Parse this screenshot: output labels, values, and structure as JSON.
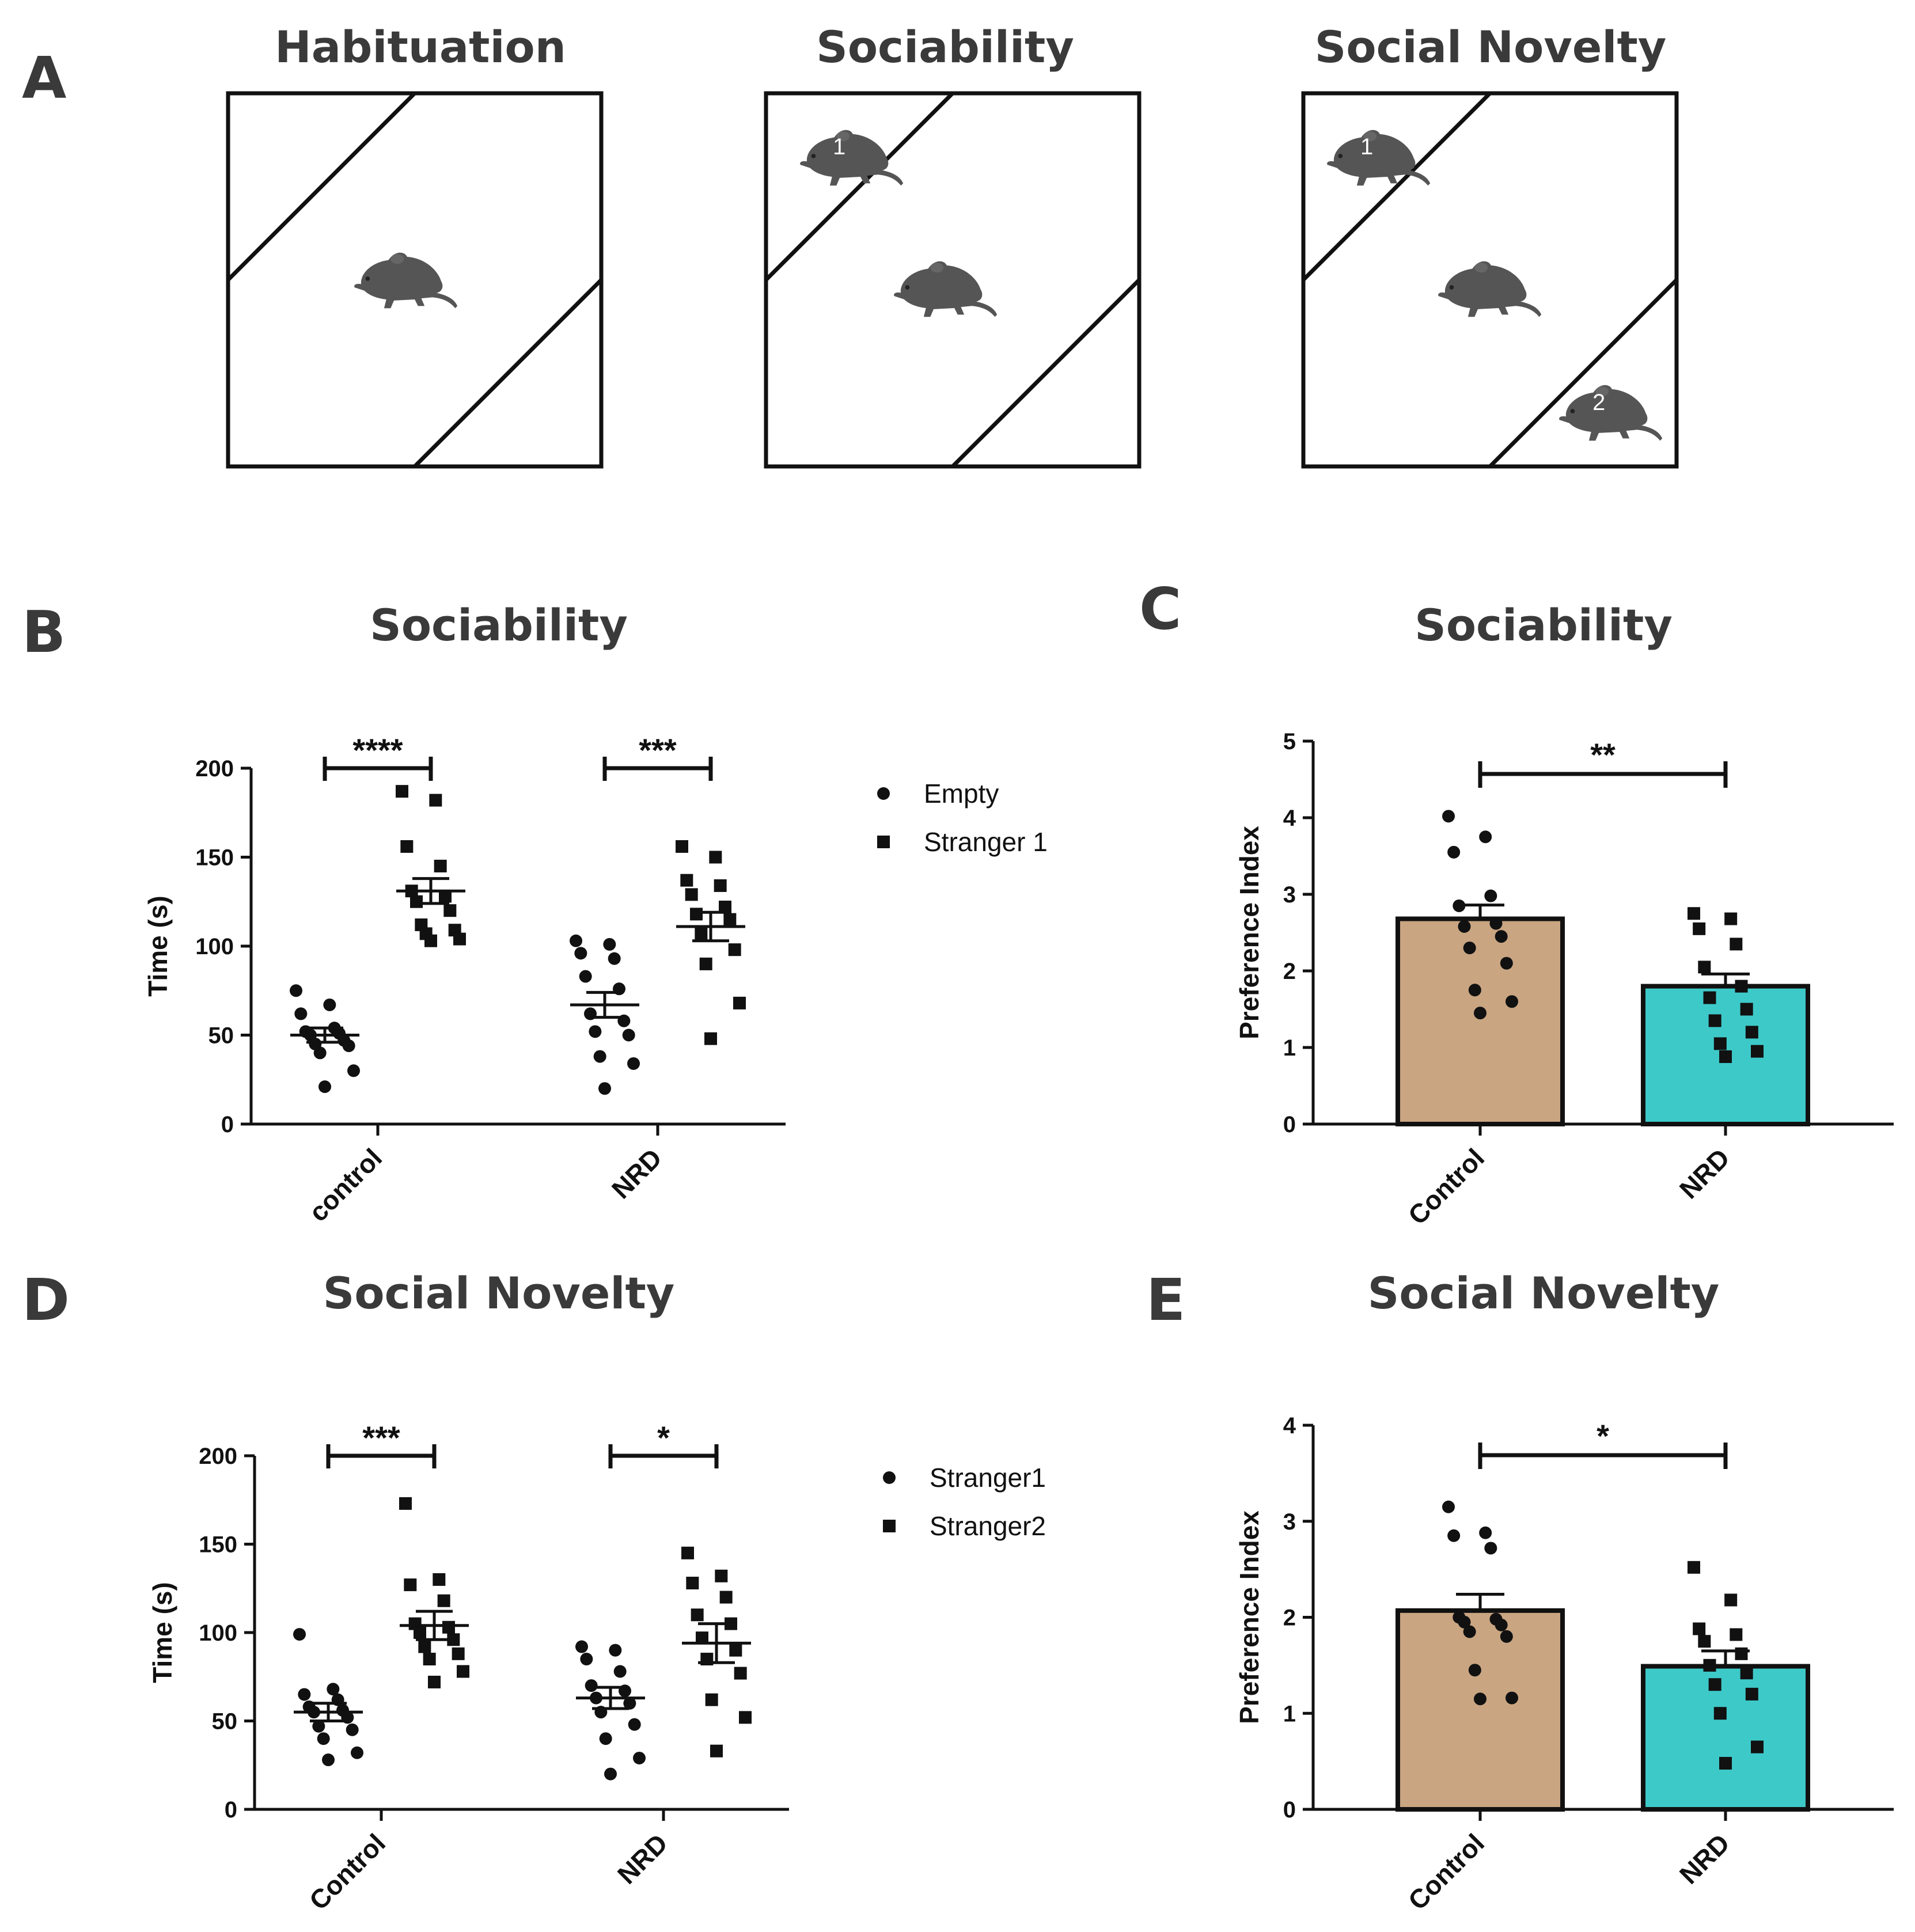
{
  "panel_labels": {
    "A": "A",
    "B": "B",
    "C": "C",
    "D": "D",
    "E": "E"
  },
  "panel_a": {
    "titles": [
      "Habituation",
      "Sociability",
      "Social Novelty"
    ],
    "mouse_numbers": [
      "1",
      "1",
      "2"
    ]
  },
  "chart_data": [
    {
      "panel": "B",
      "type": "scatter",
      "title": "Sociability",
      "ylabel": "Time (s)",
      "xlabel": "",
      "ylim": [
        0,
        200
      ],
      "yticks": [
        "0",
        "50",
        "100",
        "150",
        "200"
      ],
      "categories": [
        "control",
        "NRD"
      ],
      "series": [
        {
          "name": "Empty",
          "marker": "circle",
          "values": [
            [
              75,
              67,
              62,
              54,
              52,
              51,
              50,
              47,
              45,
              44,
              40,
              30,
              21
            ],
            [
              103,
              101,
              96,
              93,
              83,
              76,
              62,
              58,
              52,
              50,
              38,
              34,
              20
            ]
          ],
          "mean": [
            50,
            67
          ],
          "sem": [
            4,
            7
          ]
        },
        {
          "name": "Stranger 1",
          "marker": "square",
          "values": [
            [
              187,
              182,
              156,
              145,
              131,
              128,
              125,
              120,
              112,
              109,
              107,
              104,
              103
            ],
            [
              156,
              150,
              137,
              134,
              129,
              122,
              118,
              115,
              107,
              98,
              90,
              68,
              48
            ]
          ],
          "mean": [
            131,
            111
          ],
          "sem": [
            7,
            8
          ]
        }
      ],
      "significance": [
        "****",
        "***"
      ]
    },
    {
      "panel": "C",
      "type": "bar",
      "title": "Sociability",
      "ylabel": "Preference Index",
      "xlabel": "",
      "ylim": [
        0,
        5
      ],
      "yticks": [
        "0",
        "1",
        "2",
        "3",
        "4",
        "5"
      ],
      "categories": [
        "Control",
        "NRD"
      ],
      "values": [
        2.68,
        1.8
      ],
      "sem": [
        0.18,
        0.16
      ],
      "colors": [
        "#c9a582",
        "#3ec9c9"
      ],
      "points": [
        [
          4.02,
          3.75,
          3.55,
          2.98,
          2.85,
          2.62,
          2.58,
          2.45,
          2.3,
          2.1,
          1.75,
          1.6,
          1.45
        ],
        [
          2.75,
          2.68,
          2.55,
          2.35,
          2.05,
          1.8,
          1.65,
          1.5,
          1.35,
          1.2,
          1.05,
          0.95,
          0.88
        ]
      ],
      "significance": "**"
    },
    {
      "panel": "D",
      "type": "scatter",
      "title": "Social Novelty",
      "ylabel": "Time (s)",
      "xlabel": "",
      "ylim": [
        0,
        200
      ],
      "yticks": [
        "0",
        "50",
        "100",
        "150",
        "200"
      ],
      "categories": [
        "Control",
        "NRD"
      ],
      "series": [
        {
          "name": "Stranger1",
          "marker": "circle",
          "values": [
            [
              99,
              68,
              65,
              62,
              58,
              56,
              55,
              52,
              47,
              45,
              40,
              32,
              28
            ],
            [
              92,
              90,
              85,
              78,
              70,
              67,
              63,
              60,
              55,
              48,
              40,
              29,
              20
            ]
          ],
          "mean": [
            55,
            63
          ],
          "sem": [
            5,
            6
          ]
        },
        {
          "name": "Stranger2",
          "marker": "square",
          "values": [
            [
              173,
              130,
              127,
              118,
              105,
              103,
              100,
              96,
              92,
              88,
              85,
              78,
              72
            ],
            [
              145,
              132,
              128,
              120,
              110,
              105,
              97,
              90,
              85,
              77,
              62,
              52,
              33
            ]
          ],
          "mean": [
            104,
            94
          ],
          "sem": [
            8,
            11
          ]
        }
      ],
      "significance": [
        "***",
        "*"
      ]
    },
    {
      "panel": "E",
      "type": "bar",
      "title": "Social Novelty",
      "ylabel": "Preference Index",
      "xlabel": "",
      "ylim": [
        0,
        4
      ],
      "yticks": [
        "0",
        "1",
        "2",
        "3",
        "4"
      ],
      "categories": [
        "Control",
        "NRD"
      ],
      "values": [
        2.07,
        1.49
      ],
      "sem": [
        0.17,
        0.16
      ],
      "colors": [
        "#c9a582",
        "#3ec9c9"
      ],
      "points": [
        [
          3.15,
          2.88,
          2.85,
          2.72,
          2.0,
          1.98,
          1.95,
          1.92,
          1.85,
          1.8,
          1.45,
          1.16,
          1.15
        ],
        [
          2.52,
          2.18,
          1.88,
          1.82,
          1.75,
          1.62,
          1.5,
          1.42,
          1.3,
          1.2,
          1.0,
          0.65,
          0.48
        ]
      ],
      "significance": "*"
    }
  ]
}
